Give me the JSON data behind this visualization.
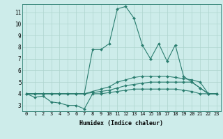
{
  "xlabel": "Humidex (Indice chaleur)",
  "background_color": "#cdecea",
  "grid_color": "#aed4ce",
  "line_color": "#2a7d6f",
  "xlim": [
    -0.5,
    23.5
  ],
  "ylim": [
    2.5,
    11.7
  ],
  "xticks": [
    0,
    1,
    2,
    3,
    4,
    5,
    6,
    7,
    8,
    9,
    10,
    11,
    12,
    13,
    14,
    15,
    16,
    17,
    18,
    19,
    20,
    21,
    22,
    23
  ],
  "yticks": [
    3,
    4,
    5,
    6,
    7,
    8,
    9,
    10,
    11
  ],
  "series": [
    [
      4.0,
      3.7,
      3.8,
      3.3,
      3.2,
      3.0,
      3.0,
      2.7,
      4.0,
      4.0,
      4.1,
      4.2,
      4.3,
      4.4,
      4.4,
      4.4,
      4.4,
      4.4,
      4.4,
      4.3,
      4.2,
      4.0,
      4.0,
      4.0
    ],
    [
      4.0,
      4.0,
      4.0,
      4.0,
      4.0,
      4.0,
      4.0,
      4.0,
      4.1,
      4.2,
      4.3,
      4.5,
      4.7,
      4.8,
      4.9,
      5.0,
      5.0,
      5.0,
      5.0,
      5.0,
      5.0,
      4.5,
      4.0,
      4.0
    ],
    [
      4.0,
      4.0,
      4.0,
      4.0,
      4.0,
      4.0,
      4.0,
      4.0,
      4.2,
      4.4,
      4.6,
      5.0,
      5.2,
      5.4,
      5.5,
      5.5,
      5.5,
      5.5,
      5.4,
      5.3,
      5.2,
      5.0,
      4.0,
      4.0
    ],
    [
      4.0,
      4.0,
      4.0,
      4.0,
      4.0,
      4.0,
      4.0,
      4.0,
      7.8,
      7.8,
      8.3,
      11.3,
      11.5,
      10.5,
      8.2,
      7.0,
      8.3,
      6.8,
      8.2,
      5.5,
      5.0,
      4.5,
      4.0,
      4.0
    ]
  ]
}
